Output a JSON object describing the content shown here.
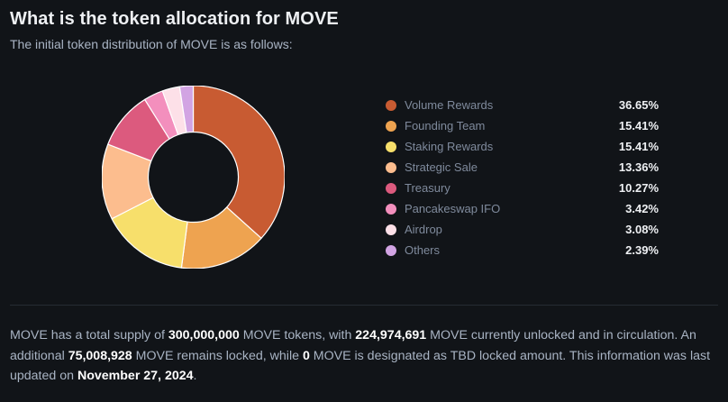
{
  "header": {
    "title": "What is the token allocation for MOVE",
    "subtitle": "The initial token distribution of MOVE is as follows:"
  },
  "chart_data": {
    "type": "pie",
    "donut": true,
    "unit": "%",
    "legend_position": "right",
    "slices": [
      {
        "label": "Volume Rewards",
        "value": 36.65,
        "display": "36.65%",
        "color": "#c85b32"
      },
      {
        "label": "Founding Team",
        "value": 15.41,
        "display": "15.41%",
        "color": "#eea350"
      },
      {
        "label": "Staking Rewards",
        "value": 15.41,
        "display": "15.41%",
        "color": "#f7df6b"
      },
      {
        "label": "Strategic Sale",
        "value": 13.36,
        "display": "13.36%",
        "color": "#fcbd8e"
      },
      {
        "label": "Treasury",
        "value": 10.27,
        "display": "10.27%",
        "color": "#dc5a7e"
      },
      {
        "label": "Pancakeswap IFO",
        "value": 3.42,
        "display": "3.42%",
        "color": "#f38fbd"
      },
      {
        "label": "Airdrop",
        "value": 3.08,
        "display": "3.08%",
        "color": "#fde0e8"
      },
      {
        "label": "Others",
        "value": 2.39,
        "display": "2.39%",
        "color": "#d2a4e3"
      }
    ]
  },
  "summary": {
    "p1": "MOVE has a total supply of ",
    "total_supply": "300,000,000",
    "p2": " MOVE tokens, with ",
    "unlocked": "224,974,691",
    "p3": " MOVE currently unlocked and in circulation. An additional ",
    "locked": "75,008,928",
    "p4": " MOVE remains locked, while ",
    "tbd": "0",
    "p5": " MOVE is designated as TBD locked amount. This information was last updated on ",
    "updated": "November 27, 2024",
    "p6": "."
  }
}
